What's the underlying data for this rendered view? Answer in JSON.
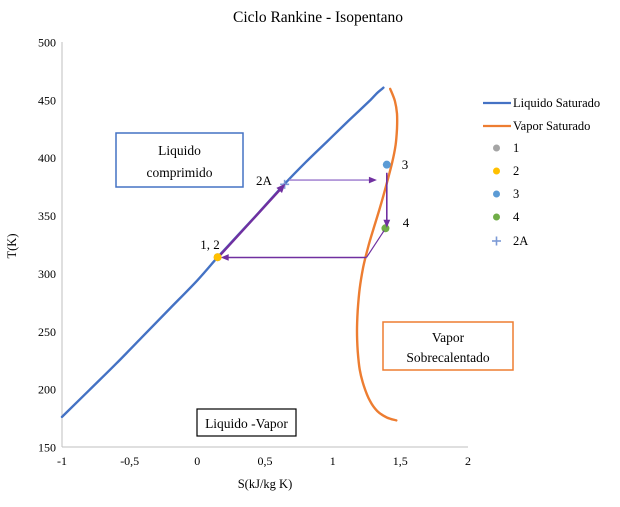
{
  "title": "Ciclo Rankine - Isopentano",
  "chart_data": {
    "type": "line",
    "title": "Ciclo Rankine - Isopentano",
    "xlabel": "S(kJ/kg K)",
    "ylabel": "T(K)",
    "xlim": [
      -1,
      2
    ],
    "ylim": [
      150,
      500
    ],
    "xticks": [
      -1,
      -0.5,
      0,
      0.5,
      1,
      1.5,
      2
    ],
    "xtick_labels": [
      "-1",
      "-0,5",
      "0",
      "0,5",
      "1",
      "1,5",
      "2"
    ],
    "yticks": [
      500,
      450,
      400,
      350,
      300,
      250,
      200,
      150
    ],
    "ytick_labels": [
      "500",
      "450",
      "400",
      "350",
      "300",
      "250",
      "200",
      "150"
    ],
    "grid": false,
    "legend_position": "right",
    "colors": {
      "axis_line": "#BFBFBF",
      "text": "#000000",
      "arrow_dark": "#7030A0",
      "arrow_light": "#A98BD4",
      "black": "#000000"
    },
    "series": [
      {
        "name": "Liquido Saturado",
        "type": "line",
        "color": "#4472C4",
        "width": 2.4,
        "points": [
          [
            -1.0,
            176
          ],
          [
            -0.8,
            199
          ],
          [
            -0.6,
            222
          ],
          [
            -0.4,
            246
          ],
          [
            -0.2,
            270
          ],
          [
            0.0,
            294
          ],
          [
            0.15,
            314
          ],
          [
            0.3,
            333
          ],
          [
            0.45,
            352
          ],
          [
            0.65,
            378
          ],
          [
            0.8,
            396
          ],
          [
            0.95,
            413
          ],
          [
            1.1,
            430
          ],
          [
            1.2,
            441
          ],
          [
            1.28,
            450
          ],
          [
            1.33,
            456
          ],
          [
            1.36,
            459
          ],
          [
            1.375,
            460.5
          ]
        ]
      },
      {
        "name": "Vapor Saturado",
        "type": "line",
        "color": "#ED7D31",
        "width": 2.4,
        "points": [
          [
            1.425,
            459.5
          ],
          [
            1.46,
            449
          ],
          [
            1.475,
            438
          ],
          [
            1.475,
            425
          ],
          [
            1.465,
            411
          ],
          [
            1.44,
            396
          ],
          [
            1.4,
            378
          ],
          [
            1.35,
            357
          ],
          [
            1.3,
            338
          ],
          [
            1.26,
            322
          ],
          [
            1.225,
            305
          ],
          [
            1.2,
            287
          ],
          [
            1.185,
            268
          ],
          [
            1.18,
            250
          ],
          [
            1.185,
            233
          ],
          [
            1.2,
            217
          ],
          [
            1.23,
            203
          ],
          [
            1.275,
            190
          ],
          [
            1.33,
            181
          ],
          [
            1.4,
            175.5
          ],
          [
            1.47,
            173
          ]
        ]
      },
      {
        "name": "1",
        "type": "point",
        "marker": "circle",
        "color": "#A5A5A5",
        "point": [
          0.15,
          314
        ],
        "layer": "under"
      },
      {
        "name": "2",
        "type": "point",
        "marker": "circle",
        "color": "#FFC000",
        "point": [
          0.15,
          314
        ],
        "layer": "over"
      },
      {
        "name": "3",
        "type": "point",
        "marker": "circle",
        "color": "#5B9BD5",
        "point": [
          1.4,
          394
        ],
        "layer": "over"
      },
      {
        "name": "4",
        "type": "point",
        "marker": "circle",
        "color": "#70AD47",
        "point": [
          1.39,
          339
        ],
        "layer": "under"
      },
      {
        "name": "2A",
        "type": "point",
        "marker": "plus",
        "color": "#7C9AD6",
        "point": [
          0.645,
          377
        ],
        "layer": "under"
      }
    ],
    "cycle_arrows": [
      {
        "name": "pump-heating-1-2-to-2A",
        "from": [
          0.17,
          316
        ],
        "to": [
          0.635,
          375.5
        ],
        "color": "#7030A0",
        "width": 2.4,
        "head": true,
        "head_size": 9
      },
      {
        "name": "evaporation-2A-to-3",
        "from": [
          0.68,
          380.7
        ],
        "to": [
          1.305,
          380.7
        ],
        "color": "#A98BD4",
        "width": 1.6,
        "head": true,
        "head_size": 8,
        "head_color": "#7030A0"
      },
      {
        "name": "turbine-3-to-4",
        "from": [
          1.4,
          387
        ],
        "to": [
          1.4,
          342
        ],
        "color": "#7030A0",
        "width": 1.6,
        "head": true,
        "head_size": 8
      },
      {
        "name": "desuperheat-4-to-line",
        "from": [
          1.38,
          337
        ],
        "to": [
          1.25,
          313.8
        ],
        "color": "#7030A0",
        "width": 1.2,
        "head": false
      },
      {
        "name": "condensation-to-1-2",
        "from": [
          1.25,
          313.8
        ],
        "to": [
          0.195,
          313.8
        ],
        "color": "#7030A0",
        "width": 1.5,
        "head": true,
        "head_size": 8
      }
    ],
    "annotations": [
      {
        "text": "1, 2",
        "s": 0.09,
        "T": 321
      },
      {
        "text": "2A",
        "s": 0.49,
        "T": 377
      },
      {
        "text": "3",
        "s": 1.53,
        "T": 390
      },
      {
        "text": "4",
        "s": 1.54,
        "T": 340
      }
    ],
    "boxes": [
      {
        "lines": [
          "Liquido",
          "comprimido"
        ],
        "border_color": "#4472C4"
      },
      {
        "lines": [
          "Vapor",
          "Sobrecalentado"
        ],
        "border_color": "#ED7D31"
      },
      {
        "lines": [
          "Liquido -Vapor"
        ],
        "border_color": "#000000"
      }
    ]
  },
  "legend": {
    "items": [
      {
        "label": "Liquido Saturado",
        "marker": "line",
        "color": "#4472C4"
      },
      {
        "label": "Vapor Saturado",
        "marker": "line",
        "color": "#ED7D31"
      },
      {
        "label": "1",
        "marker": "circle",
        "color": "#A5A5A5"
      },
      {
        "label": "2",
        "marker": "circle",
        "color": "#FFC000"
      },
      {
        "label": "3",
        "marker": "circle",
        "color": "#5B9BD5"
      },
      {
        "label": "4",
        "marker": "circle",
        "color": "#70AD47"
      },
      {
        "label": "2A",
        "marker": "plus",
        "color": "#7C9AD6"
      }
    ]
  }
}
